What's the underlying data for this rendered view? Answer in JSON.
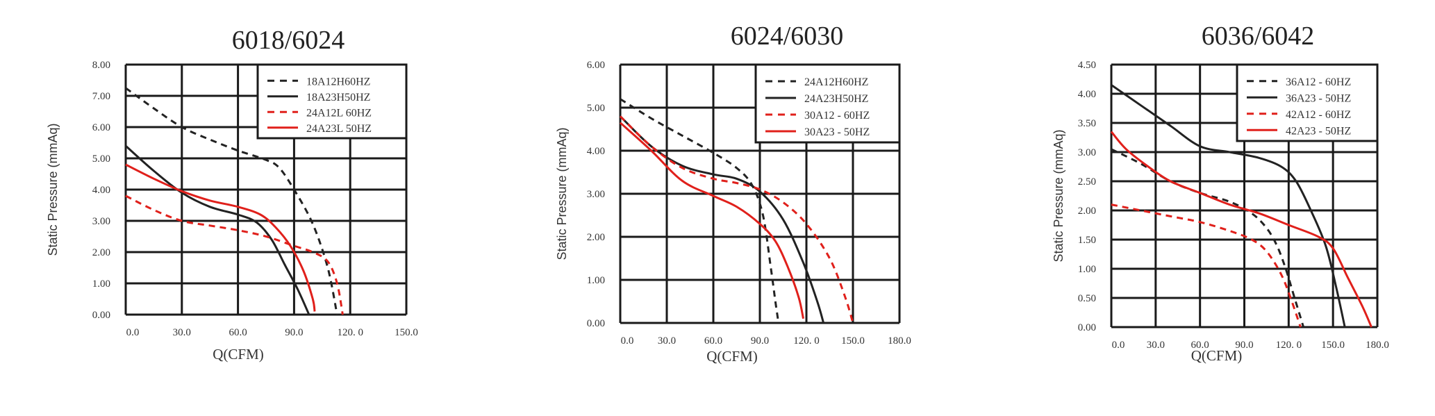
{
  "chart_data": [
    {
      "type": "line",
      "title": "6018/6024",
      "xlabel": "Q(CFM)",
      "ylabel": "Static Pressure (mmAq)",
      "xlim": [
        0,
        150
      ],
      "ylim": [
        0,
        8
      ],
      "x_ticks": [
        "0.0",
        "30.0",
        "60.0",
        "90.0",
        "120. 0",
        "150.0"
      ],
      "y_ticks": [
        "0.00",
        "1.00",
        "2.00",
        "3.00",
        "4.00",
        "5.00",
        "6.00",
        "7.00",
        "8.00"
      ],
      "legend_position": "top-right",
      "series": [
        {
          "name": "18A12H60HZ",
          "color": "#222222",
          "dashed": true,
          "points": [
            [
              0,
              7.25
            ],
            [
              15,
              6.6
            ],
            [
              30,
              6.0
            ],
            [
              45,
              5.6
            ],
            [
              60,
              5.25
            ],
            [
              75,
              4.95
            ],
            [
              82,
              4.7
            ],
            [
              90,
              4.0
            ],
            [
              100,
              2.9
            ],
            [
              108,
              1.5
            ],
            [
              113,
              0.0
            ]
          ]
        },
        {
          "name": "18A23H50HZ",
          "color": "#222222",
          "dashed": false,
          "points": [
            [
              0,
              5.4
            ],
            [
              15,
              4.6
            ],
            [
              30,
              3.9
            ],
            [
              45,
              3.45
            ],
            [
              60,
              3.2
            ],
            [
              70,
              2.95
            ],
            [
              78,
              2.4
            ],
            [
              85,
              1.6
            ],
            [
              92,
              0.8
            ],
            [
              98,
              0.0
            ]
          ]
        },
        {
          "name": "24A12L 60HZ",
          "color": "#e0201b",
          "dashed": true,
          "points": [
            [
              0,
              3.8
            ],
            [
              15,
              3.35
            ],
            [
              30,
              3.0
            ],
            [
              45,
              2.85
            ],
            [
              60,
              2.7
            ],
            [
              75,
              2.5
            ],
            [
              90,
              2.2
            ],
            [
              100,
              2.0
            ],
            [
              108,
              1.7
            ],
            [
              113,
              1.0
            ],
            [
              116,
              0.0
            ]
          ]
        },
        {
          "name": "24A23L 50HZ",
          "color": "#e0201b",
          "dashed": false,
          "points": [
            [
              0,
              4.8
            ],
            [
              15,
              4.35
            ],
            [
              30,
              3.95
            ],
            [
              45,
              3.65
            ],
            [
              60,
              3.45
            ],
            [
              72,
              3.2
            ],
            [
              80,
              2.8
            ],
            [
              88,
              2.2
            ],
            [
              95,
              1.4
            ],
            [
              100,
              0.5
            ],
            [
              101,
              0.1
            ]
          ]
        }
      ]
    },
    {
      "type": "line",
      "title": "6024/6030",
      "xlabel": "Q(CFM)",
      "ylabel": "Static Pressure (mmAq)",
      "xlim": [
        0,
        180
      ],
      "ylim": [
        0,
        6
      ],
      "x_ticks": [
        "0.0",
        "30.0",
        "60.0",
        "90.0",
        "120. 0",
        "150.0",
        "180.0"
      ],
      "y_ticks": [
        "0.00",
        "1.00",
        "2.00",
        "3.00",
        "4.00",
        "5.00",
        "6.00"
      ],
      "legend_position": "top-right",
      "series": [
        {
          "name": "24A12H60HZ",
          "color": "#222222",
          "dashed": true,
          "points": [
            [
              0,
              5.2
            ],
            [
              20,
              4.75
            ],
            [
              40,
              4.35
            ],
            [
              60,
              3.95
            ],
            [
              75,
              3.6
            ],
            [
              85,
              3.2
            ],
            [
              92,
              2.5
            ],
            [
              97,
              1.3
            ],
            [
              100,
              0.5
            ],
            [
              102,
              0.0
            ]
          ]
        },
        {
          "name": "24A23H50HZ",
          "color": "#222222",
          "dashed": false,
          "points": [
            [
              0,
              4.8
            ],
            [
              20,
              4.1
            ],
            [
              40,
              3.65
            ],
            [
              60,
              3.45
            ],
            [
              75,
              3.35
            ],
            [
              90,
              3.05
            ],
            [
              105,
              2.4
            ],
            [
              118,
              1.4
            ],
            [
              127,
              0.5
            ],
            [
              131,
              0.0
            ]
          ]
        },
        {
          "name": "30A12 - 60HZ",
          "color": "#e0201b",
          "dashed": true,
          "points": [
            [
              0,
              4.8
            ],
            [
              20,
              4.1
            ],
            [
              40,
              3.6
            ],
            [
              60,
              3.35
            ],
            [
              75,
              3.25
            ],
            [
              90,
              3.1
            ],
            [
              105,
              2.8
            ],
            [
              120,
              2.3
            ],
            [
              135,
              1.5
            ],
            [
              145,
              0.6
            ],
            [
              150,
              0.0
            ]
          ]
        },
        {
          "name": "30A23 - 50HZ",
          "color": "#e0201b",
          "dashed": false,
          "points": [
            [
              0,
              4.65
            ],
            [
              20,
              4.0
            ],
            [
              40,
              3.3
            ],
            [
              60,
              2.95
            ],
            [
              75,
              2.7
            ],
            [
              90,
              2.3
            ],
            [
              100,
              1.9
            ],
            [
              108,
              1.3
            ],
            [
              115,
              0.6
            ],
            [
              118,
              0.1
            ]
          ]
        }
      ]
    },
    {
      "type": "line",
      "title": "6036/6042",
      "xlabel": "Q(CFM)",
      "ylabel": "Static Pressure (mmAq)",
      "xlim": [
        0,
        180
      ],
      "ylim": [
        0,
        4.5
      ],
      "x_ticks": [
        "0.0",
        "30.0",
        "60.0",
        "90.0",
        "120. 0",
        "150.0",
        "180.0"
      ],
      "y_ticks": [
        "0.00",
        "0.50",
        "1.00",
        "1.50",
        "2.00",
        "2.50",
        "3.00",
        "3.50",
        "4.00",
        "4.50"
      ],
      "legend_position": "top-right",
      "series": [
        {
          "name": "36A12 - 60HZ",
          "color": "#222222",
          "dashed": true,
          "points": [
            [
              0,
              3.05
            ],
            [
              20,
              2.8
            ],
            [
              40,
              2.5
            ],
            [
              60,
              2.3
            ],
            [
              80,
              2.15
            ],
            [
              95,
              1.95
            ],
            [
              105,
              1.7
            ],
            [
              112,
              1.4
            ],
            [
              118,
              1.0
            ],
            [
              124,
              0.5
            ],
            [
              130,
              0.0
            ]
          ]
        },
        {
          "name": "36A23 - 50HZ",
          "color": "#222222",
          "dashed": false,
          "points": [
            [
              0,
              4.15
            ],
            [
              20,
              3.8
            ],
            [
              40,
              3.45
            ],
            [
              60,
              3.1
            ],
            [
              80,
              3.0
            ],
            [
              100,
              2.9
            ],
            [
              115,
              2.75
            ],
            [
              125,
              2.5
            ],
            [
              135,
              2.0
            ],
            [
              145,
              1.4
            ],
            [
              152,
              0.7
            ],
            [
              158,
              0.0
            ]
          ]
        },
        {
          "name": "42A12 - 60HZ",
          "color": "#e0201b",
          "dashed": true,
          "points": [
            [
              0,
              2.1
            ],
            [
              20,
              2.0
            ],
            [
              40,
              1.9
            ],
            [
              60,
              1.8
            ],
            [
              80,
              1.65
            ],
            [
              95,
              1.5
            ],
            [
              105,
              1.3
            ],
            [
              115,
              0.9
            ],
            [
              122,
              0.45
            ],
            [
              128,
              0.0
            ]
          ]
        },
        {
          "name": "42A23 - 50HZ",
          "color": "#e0201b",
          "dashed": false,
          "points": [
            [
              0,
              3.35
            ],
            [
              10,
              3.05
            ],
            [
              25,
              2.75
            ],
            [
              40,
              2.5
            ],
            [
              60,
              2.3
            ],
            [
              80,
              2.1
            ],
            [
              100,
              1.95
            ],
            [
              120,
              1.75
            ],
            [
              140,
              1.55
            ],
            [
              150,
              1.35
            ],
            [
              160,
              0.85
            ],
            [
              170,
              0.35
            ],
            [
              176,
              0.0
            ]
          ]
        }
      ]
    }
  ]
}
